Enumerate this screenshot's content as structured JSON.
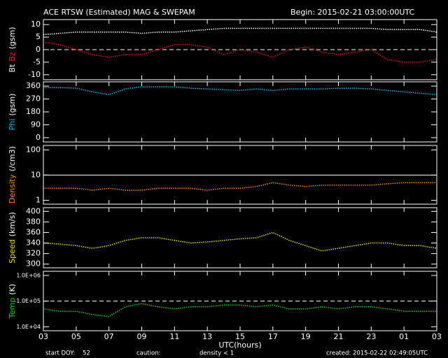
{
  "header": {
    "title": "ACE RTSW (Estimated) MAG & SWEPAM",
    "begin": "Begin: 2015-02-21 03:00:00UTC"
  },
  "footer": {
    "start_label": "start DOY:",
    "start_doy": "52",
    "caution_label": "caution:",
    "caution": "density < 1",
    "caution_color": "#ff8c1a",
    "created": "created: 2015-02-22 02:49:05UTC"
  },
  "chart_data": [
    {
      "type": "line",
      "ylabel": [
        {
          "text": "Bt",
          "color": "#ffffff"
        },
        {
          "text": "Bz",
          "color": "#ff2020"
        },
        {
          "text": "(gsm)",
          "color": "#ffffff"
        }
      ],
      "ylim": [
        -12,
        12
      ],
      "yticks": [
        -10,
        -5,
        0,
        5,
        10
      ],
      "reference_line": {
        "value": 0,
        "style": "dashed"
      },
      "x": [
        0,
        1,
        2,
        3,
        4,
        5,
        6,
        7,
        8,
        9,
        10,
        11,
        12,
        13,
        14,
        15,
        16,
        17,
        18,
        19,
        20,
        21,
        22,
        23,
        24
      ],
      "series": [
        {
          "name": "Bt",
          "color": "#ffffff",
          "values": [
            6,
            6.5,
            7,
            7,
            7,
            7,
            6.5,
            7,
            7,
            7.5,
            8,
            8.5,
            8.5,
            8.5,
            8.5,
            8.5,
            8.5,
            8.5,
            8.5,
            8.5,
            8.5,
            8,
            8,
            8,
            7
          ]
        },
        {
          "name": "Bz",
          "color": "#e01818",
          "values": [
            3,
            2,
            0,
            -2,
            -3,
            -2,
            -2,
            0,
            2,
            2,
            1,
            -2,
            0,
            -1,
            -3,
            0,
            1,
            -1,
            -2,
            -1,
            0,
            -4,
            -5,
            -5,
            -4
          ]
        }
      ]
    },
    {
      "type": "line",
      "ylabel": [
        {
          "text": "Phi",
          "color": "#20b8f0"
        },
        {
          "text": "(gsm)",
          "color": "#ffffff"
        }
      ],
      "ylim": [
        -30,
        390
      ],
      "yticks": [
        0,
        90,
        180,
        270,
        360
      ],
      "x": [
        0,
        1,
        2,
        3,
        4,
        5,
        6,
        7,
        8,
        9,
        10,
        11,
        12,
        13,
        14,
        15,
        16,
        17,
        18,
        19,
        20,
        21,
        22,
        23,
        24
      ],
      "series": [
        {
          "name": "Phi",
          "color": "#20b8f0",
          "values": [
            350,
            350,
            345,
            320,
            300,
            340,
            355,
            355,
            355,
            345,
            340,
            335,
            330,
            340,
            330,
            340,
            340,
            340,
            345,
            345,
            340,
            330,
            320,
            310,
            300
          ]
        }
      ]
    },
    {
      "type": "line",
      "log": true,
      "ylabel": [
        {
          "text": "Density",
          "color": "#ff8c1a"
        },
        {
          "text": "(/cm3)",
          "color": "#ffffff"
        }
      ],
      "ylim": [
        0.7,
        150
      ],
      "yticks": [
        1,
        10,
        100
      ],
      "reference_line": {
        "value": 10,
        "style": "solid"
      },
      "x": [
        0,
        1,
        2,
        3,
        4,
        5,
        6,
        7,
        8,
        9,
        10,
        11,
        12,
        13,
        14,
        15,
        16,
        17,
        18,
        19,
        20,
        21,
        22,
        23,
        24
      ],
      "series": [
        {
          "name": "Density",
          "color": "#ff8c1a",
          "values": [
            3,
            3,
            3,
            2.5,
            3,
            2.5,
            2.5,
            3,
            3,
            3,
            2.5,
            3,
            3,
            3.5,
            5,
            4,
            3.5,
            4,
            4,
            4,
            4,
            4.5,
            5,
            5,
            5
          ]
        }
      ]
    },
    {
      "type": "line",
      "ylabel": [
        {
          "text": "Speed",
          "color": "#f0e020"
        },
        {
          "text": "(km/s)",
          "color": "#ffffff"
        }
      ],
      "ylim": [
        293,
        407
      ],
      "yticks": [
        300,
        320,
        340,
        360,
        380,
        400
      ],
      "x": [
        0,
        1,
        2,
        3,
        4,
        5,
        6,
        7,
        8,
        9,
        10,
        11,
        12,
        13,
        14,
        15,
        16,
        17,
        18,
        19,
        20,
        21,
        22,
        23,
        24
      ],
      "series": [
        {
          "name": "Speed",
          "color": "#f0e020",
          "values": [
            340,
            338,
            335,
            330,
            335,
            345,
            350,
            350,
            345,
            340,
            342,
            345,
            348,
            350,
            360,
            345,
            335,
            325,
            330,
            335,
            340,
            340,
            335,
            335,
            330
          ]
        }
      ]
    },
    {
      "type": "line",
      "log": true,
      "ylabel": [
        {
          "text": "Temp",
          "color": "#20d020"
        },
        {
          "text": "(K)",
          "color": "#ffffff"
        }
      ],
      "ylim": [
        7000,
        1450000
      ],
      "yticks": [
        {
          "value": 10000,
          "label": "1.0E+04"
        },
        {
          "value": 100000,
          "label": "1.0E+05"
        },
        {
          "value": 1000000,
          "label": "1.0E+06"
        }
      ],
      "reference_line": {
        "value": 100000,
        "style": "dashed"
      },
      "x": [
        0,
        1,
        2,
        3,
        4,
        5,
        6,
        7,
        8,
        9,
        10,
        11,
        12,
        13,
        14,
        15,
        16,
        17,
        18,
        19,
        20,
        21,
        22,
        23,
        24
      ],
      "xlim": [
        0,
        24
      ],
      "xlabel": "UTC(hours)",
      "xticks": [
        {
          "value": 0,
          "label": "03"
        },
        {
          "value": 2,
          "label": "05"
        },
        {
          "value": 4,
          "label": "07"
        },
        {
          "value": 6,
          "label": "09"
        },
        {
          "value": 8,
          "label": "11"
        },
        {
          "value": 10,
          "label": "13"
        },
        {
          "value": 12,
          "label": "15"
        },
        {
          "value": 14,
          "label": "17"
        },
        {
          "value": 16,
          "label": "19"
        },
        {
          "value": 18,
          "label": "21"
        },
        {
          "value": 20,
          "label": "23"
        },
        {
          "value": 22,
          "label": "01"
        },
        {
          "value": 24,
          "label": "03"
        }
      ],
      "series": [
        {
          "name": "Temp",
          "color": "#20d020",
          "values": [
            50000,
            40000,
            40000,
            30000,
            25000,
            60000,
            80000,
            60000,
            50000,
            60000,
            60000,
            70000,
            70000,
            60000,
            70000,
            50000,
            50000,
            60000,
            50000,
            60000,
            60000,
            50000,
            40000,
            40000,
            40000
          ]
        }
      ]
    }
  ]
}
